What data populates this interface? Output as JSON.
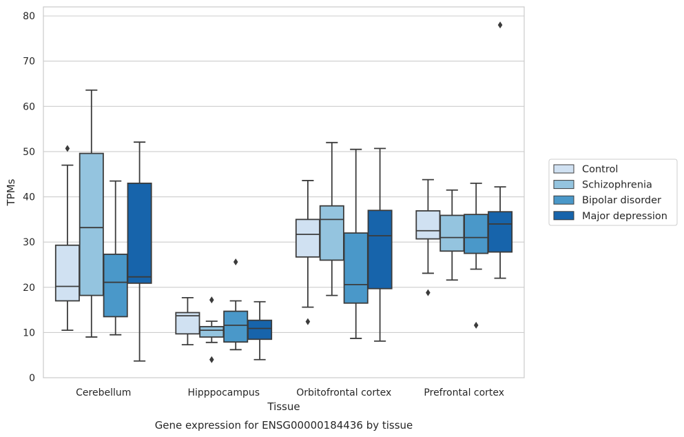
{
  "chart_data": {
    "type": "boxplot",
    "caption": "Gene expression for ENSG00000184436 by tissue",
    "xlabel": "Tissue",
    "ylabel": "TPMs",
    "ylim": [
      0,
      82
    ],
    "yticks": [
      0,
      10,
      20,
      30,
      40,
      50,
      60,
      70,
      80
    ],
    "grid": true,
    "legend_position": "right",
    "categories": [
      "Cerebellum",
      "Hipppocampus",
      "Orbitofrontal cortex",
      "Prefrontal cortex"
    ],
    "series": [
      {
        "name": "Control",
        "color": "#d0e1f2",
        "boxes": [
          {
            "whisker_low": 10.5,
            "q1": 17.0,
            "median": 20.2,
            "q3": 29.3,
            "whisker_high": 47.0,
            "outliers": [
              50.7
            ]
          },
          {
            "whisker_low": 7.3,
            "q1": 9.7,
            "median": 13.7,
            "q3": 14.4,
            "whisker_high": 17.7,
            "outliers": []
          },
          {
            "whisker_low": 15.6,
            "q1": 26.7,
            "median": 31.7,
            "q3": 35.0,
            "whisker_high": 43.6,
            "outliers": [
              12.4
            ]
          },
          {
            "whisker_low": 23.1,
            "q1": 30.7,
            "median": 32.5,
            "q3": 36.9,
            "whisker_high": 43.8,
            "outliers": [
              18.8
            ]
          }
        ]
      },
      {
        "name": "Schizophrenia",
        "color": "#94c4df",
        "boxes": [
          {
            "whisker_low": 9.0,
            "q1": 18.2,
            "median": 33.2,
            "q3": 49.6,
            "whisker_high": 63.6,
            "outliers": []
          },
          {
            "whisker_low": 7.8,
            "q1": 9.0,
            "median": 10.5,
            "q3": 11.3,
            "whisker_high": 12.5,
            "outliers": [
              17.2,
              4.0
            ]
          },
          {
            "whisker_low": 18.2,
            "q1": 26.0,
            "median": 35.0,
            "q3": 38.0,
            "whisker_high": 52.0,
            "outliers": []
          },
          {
            "whisker_low": 21.6,
            "q1": 28.0,
            "median": 31.0,
            "q3": 35.9,
            "whisker_high": 41.5,
            "outliers": []
          }
        ]
      },
      {
        "name": "Bipolar disorder",
        "color": "#4a98c9",
        "boxes": [
          {
            "whisker_low": 9.5,
            "q1": 13.5,
            "median": 21.1,
            "q3": 27.3,
            "whisker_high": 43.5,
            "outliers": []
          },
          {
            "whisker_low": 6.2,
            "q1": 7.9,
            "median": 11.6,
            "q3": 14.7,
            "whisker_high": 17.0,
            "outliers": [
              25.6
            ]
          },
          {
            "whisker_low": 8.7,
            "q1": 16.5,
            "median": 20.6,
            "q3": 32.0,
            "whisker_high": 50.5,
            "outliers": []
          },
          {
            "whisker_low": 24.0,
            "q1": 27.5,
            "median": 31.0,
            "q3": 36.1,
            "whisker_high": 43.0,
            "outliers": [
              11.6
            ]
          }
        ]
      },
      {
        "name": "Major depression",
        "color": "#1764ab",
        "boxes": [
          {
            "whisker_low": 3.7,
            "q1": 20.9,
            "median": 22.3,
            "q3": 43.0,
            "whisker_high": 52.1,
            "outliers": []
          },
          {
            "whisker_low": 4.0,
            "q1": 8.5,
            "median": 10.9,
            "q3": 12.7,
            "whisker_high": 16.8,
            "outliers": []
          },
          {
            "whisker_low": 8.1,
            "q1": 19.7,
            "median": 31.4,
            "q3": 37.0,
            "whisker_high": 50.7,
            "outliers": []
          },
          {
            "whisker_low": 22.0,
            "q1": 27.8,
            "median": 34.0,
            "q3": 36.7,
            "whisker_high": 42.2,
            "outliers": [
              78.0
            ]
          }
        ]
      }
    ]
  }
}
